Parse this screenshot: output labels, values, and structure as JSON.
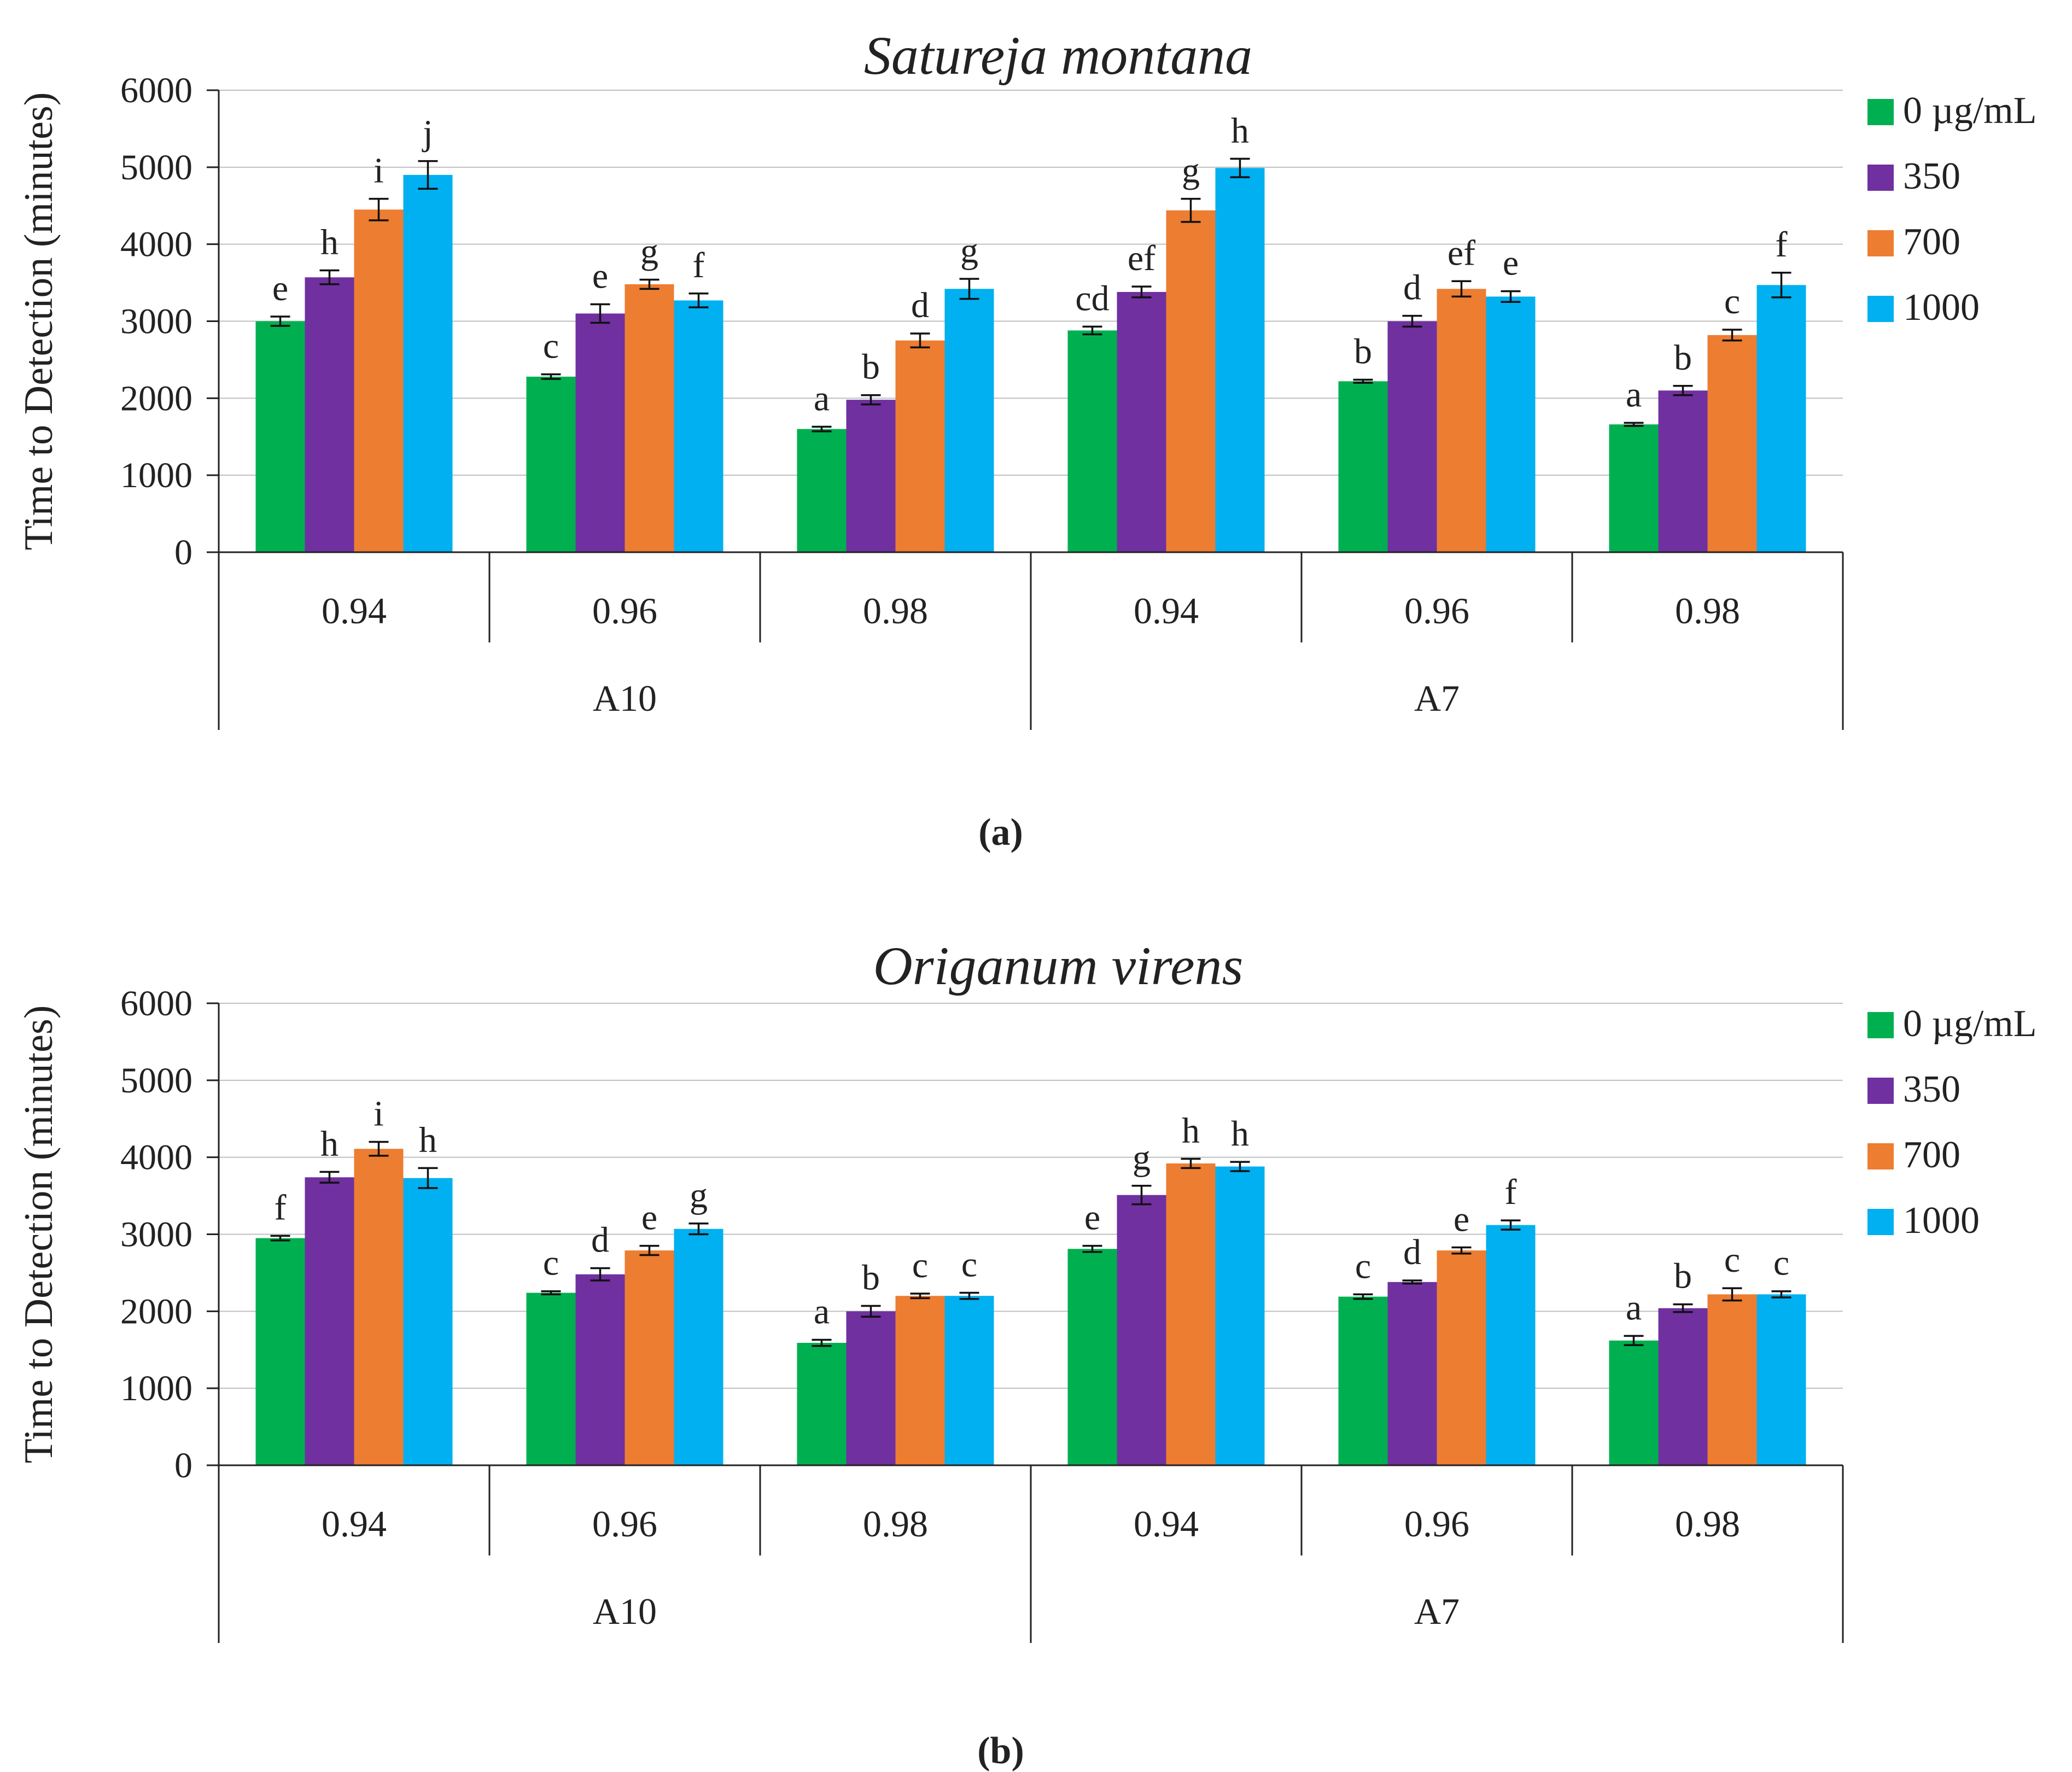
{
  "chart_data": [
    {
      "type": "bar",
      "panel_label": "(a)",
      "title": "Satureja montana",
      "ylabel": "Time to Detection (minutes)",
      "xlabel": "",
      "ylim": [
        0,
        6000
      ],
      "yticks": [
        0,
        1000,
        2000,
        3000,
        4000,
        5000,
        6000
      ],
      "grid": true,
      "legend_position": "right",
      "groups": [
        {
          "label": "A10",
          "subcategories": [
            "0.94",
            "0.96",
            "0.98"
          ]
        },
        {
          "label": "A7",
          "subcategories": [
            "0.94",
            "0.96",
            "0.98"
          ]
        }
      ],
      "categories": [
        "A10 0.94",
        "A10 0.96",
        "A10 0.98",
        "A7 0.94",
        "A7 0.96",
        "A7 0.98"
      ],
      "series": [
        {
          "name": "0 µg/mL",
          "color": "#00b050",
          "values": [
            3000,
            2280,
            1600,
            2880,
            2220,
            1660
          ],
          "errors": [
            60,
            30,
            30,
            50,
            20,
            20
          ],
          "labels": [
            "e",
            "c",
            "a",
            "cd",
            "b",
            "a"
          ]
        },
        {
          "name": "350",
          "color": "#7030a0",
          "values": [
            3570,
            3100,
            1980,
            3380,
            3000,
            2100
          ],
          "errors": [
            90,
            120,
            60,
            70,
            70,
            60
          ],
          "labels": [
            "h",
            "e",
            "b",
            "ef",
            "d",
            "b"
          ]
        },
        {
          "name": "700",
          "color": "#ed7d31",
          "values": [
            4450,
            3480,
            2750,
            4440,
            3420,
            2820
          ],
          "errors": [
            140,
            60,
            90,
            150,
            100,
            70
          ],
          "labels": [
            "i",
            "g",
            "d",
            "g",
            "ef",
            "c"
          ]
        },
        {
          "name": "1000",
          "color": "#00b0f0",
          "values": [
            4900,
            3270,
            3420,
            4990,
            3320,
            3470
          ],
          "errors": [
            180,
            90,
            130,
            120,
            70,
            160
          ],
          "labels": [
            "j",
            "f",
            "g",
            "h",
            "e",
            "f"
          ]
        }
      ]
    },
    {
      "type": "bar",
      "panel_label": "(b)",
      "title": "Origanum virens",
      "ylabel": "Time to Detection (minutes)",
      "xlabel": "",
      "ylim": [
        0,
        6000
      ],
      "yticks": [
        0,
        1000,
        2000,
        3000,
        4000,
        5000,
        6000
      ],
      "grid": true,
      "legend_position": "right",
      "groups": [
        {
          "label": "A10",
          "subcategories": [
            "0.94",
            "0.96",
            "0.98"
          ]
        },
        {
          "label": "A7",
          "subcategories": [
            "0.94",
            "0.96",
            "0.98"
          ]
        }
      ],
      "categories": [
        "A10 0.94",
        "A10 0.96",
        "A10 0.98",
        "A7 0.94",
        "A7 0.96",
        "A7 0.98"
      ],
      "series": [
        {
          "name": "0 µg/mL",
          "color": "#00b050",
          "values": [
            2950,
            2240,
            1590,
            2810,
            2190,
            1620
          ],
          "errors": [
            30,
            20,
            40,
            40,
            30,
            60
          ],
          "labels": [
            "f",
            "c",
            "a",
            "e",
            "c",
            "a"
          ]
        },
        {
          "name": "350",
          "color": "#7030a0",
          "values": [
            3740,
            2480,
            2000,
            3510,
            2380,
            2040
          ],
          "errors": [
            70,
            80,
            70,
            120,
            20,
            50
          ],
          "labels": [
            "h",
            "d",
            "b",
            "g",
            "d",
            "b"
          ]
        },
        {
          "name": "700",
          "color": "#ed7d31",
          "values": [
            4110,
            2790,
            2200,
            3920,
            2790,
            2220
          ],
          "errors": [
            90,
            60,
            30,
            60,
            40,
            80
          ],
          "labels": [
            "i",
            "e",
            "c",
            "h",
            "e",
            "c"
          ]
        },
        {
          "name": "1000",
          "color": "#00b0f0",
          "values": [
            3730,
            3070,
            2200,
            3880,
            3120,
            2220
          ],
          "errors": [
            130,
            70,
            40,
            60,
            60,
            40
          ],
          "labels": [
            "h",
            "g",
            "c",
            "h",
            "f",
            "c"
          ]
        }
      ]
    }
  ]
}
